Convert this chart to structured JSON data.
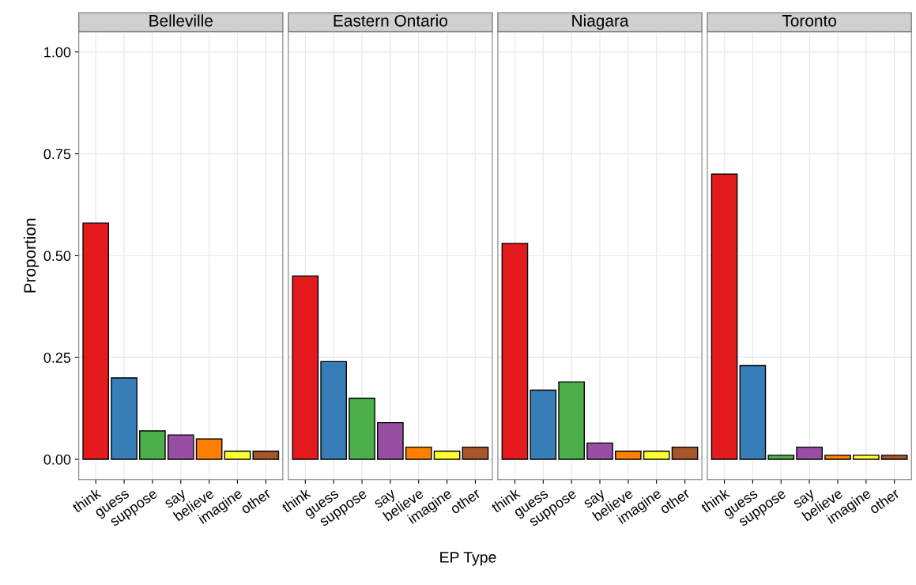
{
  "chart_data": [
    {
      "type": "bar",
      "title": "Belleville",
      "ylabel": "Proportion",
      "categories": [
        "think",
        "guess",
        "suppose",
        "say",
        "believe",
        "imagine",
        "other"
      ],
      "values": [
        0.58,
        0.2,
        0.07,
        0.06,
        0.05,
        0.02,
        0.02
      ],
      "colors": [
        "#e41a1c",
        "#377eb8",
        "#4daf4a",
        "#984ea3",
        "#ff7f00",
        "#ffff33",
        "#a65628"
      ],
      "ylim": [
        -0.05,
        1.05
      ],
      "yticks": [
        {
          "value": 0,
          "label": "0.00"
        },
        {
          "value": 0.25,
          "label": "0.25"
        },
        {
          "value": 0.5,
          "label": "0.50"
        },
        {
          "value": 0.75,
          "label": "0.75"
        },
        {
          "value": 1,
          "label": "1.00"
        }
      ],
      "grid": true
    },
    {
      "type": "bar",
      "title": "Eastern Ontario",
      "xlabel": "EP Type",
      "categories": [
        "think",
        "guess",
        "suppose",
        "say",
        "believe",
        "imagine",
        "other"
      ],
      "values": [
        0.45,
        0.24,
        0.15,
        0.09,
        0.03,
        0.02,
        0.03
      ],
      "colors": [
        "#e41a1c",
        "#377eb8",
        "#4daf4a",
        "#984ea3",
        "#ff7f00",
        "#ffff33",
        "#a65628"
      ],
      "ylim": [
        -0.05,
        1.05
      ],
      "yticks": [
        0,
        0.25,
        0.5,
        0.75,
        1
      ],
      "grid": true,
      "tick_labels": "x"
    },
    {
      "type": "bar",
      "title": "Niagara",
      "categories": [
        "think",
        "guess",
        "suppose",
        "say",
        "believe",
        "imagine",
        "other"
      ],
      "values": [
        0.53,
        0.17,
        0.19,
        0.04,
        0.02,
        0.02,
        0.03
      ],
      "colors": [
        "#e41a1c",
        "#377eb8",
        "#4daf4a",
        "#984ea3",
        "#ff7f00",
        "#ffff33",
        "#a65628"
      ],
      "ylim": [
        -0.05,
        1.05
      ],
      "yticks": [
        0,
        0.25,
        0.5,
        0.75,
        1
      ],
      "grid": true,
      "tick_labels": "x"
    },
    {
      "type": "bar",
      "title": "Toronto",
      "categories": [
        "think",
        "guess",
        "suppose",
        "say",
        "believe",
        "imagine",
        "other"
      ],
      "values": [
        0.7,
        0.23,
        0.01,
        0.03,
        0.01,
        0.01,
        0.01
      ],
      "colors": [
        "#e41a1c",
        "#377eb8",
        "#4daf4a",
        "#984ea3",
        "#ff7f00",
        "#ffff33",
        "#a65628"
      ],
      "ylim": [
        -0.05,
        1.05
      ],
      "yticks": [
        0,
        0.25,
        0.5,
        0.75,
        1
      ],
      "grid": true,
      "tick_labels": "x"
    }
  ]
}
